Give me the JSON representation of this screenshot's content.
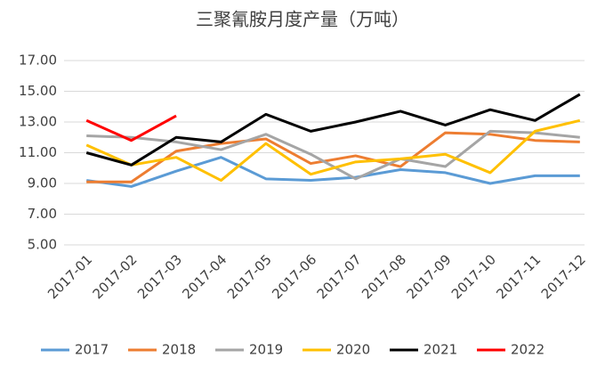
{
  "chart_data": {
    "type": "line",
    "title": "三聚氰胺月度产量（万吨）",
    "categories": [
      "2017-01",
      "2017-02",
      "2017-03",
      "2017-04",
      "2017-05",
      "2017-06",
      "2017-07",
      "2017-08",
      "2017-09",
      "2017-10",
      "2017-11",
      "2017-12"
    ],
    "series": [
      {
        "name": "2017",
        "color": "#5b9bd5",
        "values": [
          9.2,
          8.8,
          9.8,
          10.7,
          9.3,
          9.2,
          9.4,
          9.9,
          9.7,
          9.0,
          9.5,
          9.5
        ]
      },
      {
        "name": "2018",
        "color": "#ed7d31",
        "values": [
          9.1,
          9.1,
          11.1,
          11.6,
          11.9,
          10.3,
          10.8,
          10.1,
          12.3,
          12.2,
          11.8,
          11.7
        ]
      },
      {
        "name": "2019",
        "color": "#a5a5a5",
        "values": [
          12.1,
          12.0,
          11.7,
          11.2,
          12.2,
          10.9,
          9.3,
          10.6,
          10.1,
          12.4,
          12.3,
          12.0
        ]
      },
      {
        "name": "2020",
        "color": "#ffc000",
        "values": [
          11.5,
          10.2,
          10.7,
          9.2,
          11.6,
          9.6,
          10.4,
          10.6,
          10.9,
          9.7,
          12.4,
          13.1
        ]
      },
      {
        "name": "2021",
        "color": "#000000",
        "values": [
          11.0,
          10.2,
          12.0,
          11.7,
          13.5,
          12.4,
          13.0,
          13.7,
          12.8,
          13.8,
          13.1,
          14.8
        ]
      },
      {
        "name": "2022",
        "color": "#ff0000",
        "values": [
          13.1,
          11.8,
          13.4,
          null,
          null,
          null,
          null,
          null,
          null,
          null,
          null,
          null
        ]
      }
    ],
    "ylim": [
      5,
      17
    ],
    "yticks": [
      {
        "value": 5,
        "label": "5.00"
      },
      {
        "value": 7,
        "label": "7.00"
      },
      {
        "value": 9,
        "label": "9.00"
      },
      {
        "value": 11,
        "label": "11.00"
      },
      {
        "value": 13,
        "label": "13.00"
      },
      {
        "value": 15,
        "label": "15.00"
      },
      {
        "value": 17,
        "label": "17.00"
      }
    ],
    "grid": true,
    "legend": "bottom"
  }
}
